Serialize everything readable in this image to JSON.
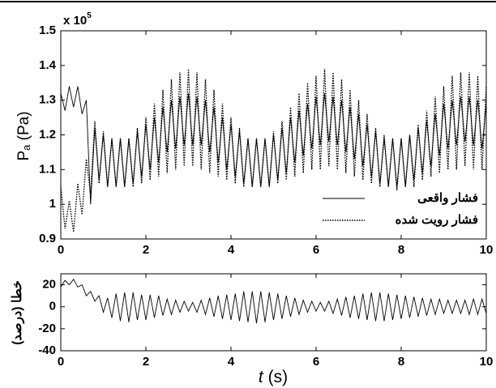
{
  "chart_data": [
    {
      "type": "line",
      "ylabel_symbol": "P",
      "ylabel_sub": "a",
      "ylabel_unit": " (Pa)",
      "multiplier": "x 10",
      "multiplier_exp": "5",
      "x": [
        0,
        0.1,
        0.2,
        0.3,
        0.4,
        0.5,
        0.6,
        0.7,
        0.8,
        0.9,
        1,
        1.1,
        1.2,
        1.3,
        1.4,
        1.5,
        1.6,
        1.7,
        1.8,
        1.9,
        2,
        2.1,
        2.2,
        2.3,
        2.4,
        2.5,
        2.6,
        2.7,
        2.8,
        2.9,
        3,
        3.1,
        3.2,
        3.3,
        3.4,
        3.5,
        3.6,
        3.7,
        3.8,
        3.9,
        4,
        4.1,
        4.2,
        4.3,
        4.4,
        4.5,
        4.6,
        4.7,
        4.8,
        4.9,
        5,
        5.1,
        5.2,
        5.3,
        5.4,
        5.5,
        5.6,
        5.7,
        5.8,
        5.9,
        6,
        6.1,
        6.2,
        6.3,
        6.4,
        6.5,
        6.6,
        6.7,
        6.8,
        6.9,
        7,
        7.1,
        7.2,
        7.3,
        7.4,
        7.5,
        7.6,
        7.7,
        7.8,
        7.9,
        8,
        8.1,
        8.2,
        8.3,
        8.4,
        8.5,
        8.6,
        8.7,
        8.8,
        8.9,
        9,
        9.1,
        9.2,
        9.3,
        9.4,
        9.5,
        9.6,
        9.7,
        9.8,
        9.9,
        10
      ],
      "series": [
        {
          "name": "فشار واقعی",
          "color": "#000000",
          "dash": "solid",
          "values": [
            1.32,
            1.27,
            1.34,
            1.28,
            1.34,
            1.26,
            1.3,
            1.0,
            1.22,
            1.07,
            1.2,
            1.05,
            1.19,
            1.05,
            1.19,
            1.05,
            1.19,
            1.06,
            1.21,
            1.08,
            1.23,
            1.1,
            1.25,
            1.12,
            1.28,
            1.15,
            1.3,
            1.16,
            1.31,
            1.17,
            1.32,
            1.17,
            1.31,
            1.17,
            1.3,
            1.15,
            1.28,
            1.12,
            1.25,
            1.1,
            1.23,
            1.08,
            1.21,
            1.06,
            1.19,
            1.05,
            1.19,
            1.05,
            1.19,
            1.05,
            1.2,
            1.07,
            1.22,
            1.09,
            1.25,
            1.12,
            1.27,
            1.14,
            1.29,
            1.16,
            1.31,
            1.17,
            1.32,
            1.18,
            1.31,
            1.17,
            1.3,
            1.15,
            1.28,
            1.13,
            1.26,
            1.11,
            1.23,
            1.08,
            1.21,
            1.06,
            1.19,
            1.05,
            1.19,
            1.05,
            1.19,
            1.05,
            1.2,
            1.07,
            1.22,
            1.09,
            1.24,
            1.11,
            1.26,
            1.14,
            1.29,
            1.16,
            1.3,
            1.17,
            1.31,
            1.18,
            1.31,
            1.17,
            1.3,
            1.16,
            1.29
          ]
        },
        {
          "name": "فشار رویت شده",
          "color": "#000000",
          "dash": "dotted",
          "values": [
            1.05,
            0.93,
            1.01,
            0.92,
            1.06,
            0.97,
            1.13,
            1.03,
            1.24,
            1.06,
            1.21,
            1.05,
            1.19,
            1.05,
            1.19,
            1.05,
            1.19,
            1.05,
            1.22,
            1.06,
            1.25,
            1.07,
            1.29,
            1.08,
            1.33,
            1.09,
            1.36,
            1.1,
            1.38,
            1.11,
            1.39,
            1.11,
            1.38,
            1.1,
            1.36,
            1.09,
            1.33,
            1.08,
            1.29,
            1.07,
            1.25,
            1.06,
            1.22,
            1.05,
            1.19,
            1.05,
            1.19,
            1.05,
            1.19,
            1.05,
            1.21,
            1.06,
            1.24,
            1.07,
            1.28,
            1.08,
            1.32,
            1.09,
            1.35,
            1.1,
            1.37,
            1.1,
            1.39,
            1.11,
            1.38,
            1.1,
            1.36,
            1.09,
            1.33,
            1.08,
            1.3,
            1.07,
            1.26,
            1.06,
            1.22,
            1.05,
            1.2,
            1.05,
            1.19,
            1.04,
            1.19,
            1.05,
            1.2,
            1.05,
            1.23,
            1.07,
            1.27,
            1.08,
            1.31,
            1.09,
            1.34,
            1.1,
            1.37,
            1.1,
            1.38,
            1.11,
            1.38,
            1.1,
            1.37,
            1.1,
            1.34
          ]
        }
      ],
      "xlim": [
        0,
        10
      ],
      "xticks": [
        0,
        2,
        4,
        6,
        8,
        10
      ],
      "ylim": [
        0.9,
        1.5
      ],
      "yticks": [
        0.9,
        1,
        1.1,
        1.2,
        1.3,
        1.4,
        1.5
      ]
    },
    {
      "type": "line",
      "ylabel": "خطا (درصد)",
      "xlabel_var": "t",
      "xlabel_unit": " (s)",
      "x": [
        0,
        0.1,
        0.2,
        0.3,
        0.4,
        0.5,
        0.6,
        0.7,
        0.8,
        0.9,
        1,
        1.1,
        1.2,
        1.3,
        1.4,
        1.5,
        1.6,
        1.7,
        1.8,
        1.9,
        2,
        2.1,
        2.2,
        2.3,
        2.4,
        2.5,
        2.6,
        2.7,
        2.8,
        2.9,
        3,
        3.1,
        3.2,
        3.3,
        3.4,
        3.5,
        3.6,
        3.7,
        3.8,
        3.9,
        4,
        4.1,
        4.2,
        4.3,
        4.4,
        4.5,
        4.6,
        4.7,
        4.8,
        4.9,
        5,
        5.1,
        5.2,
        5.3,
        5.4,
        5.5,
        5.6,
        5.7,
        5.8,
        5.9,
        6,
        6.1,
        6.2,
        6.3,
        6.4,
        6.5,
        6.6,
        6.7,
        6.8,
        6.9,
        7,
        7.1,
        7.2,
        7.3,
        7.4,
        7.5,
        7.6,
        7.7,
        7.8,
        7.9,
        8,
        8.1,
        8.2,
        8.3,
        8.4,
        8.5,
        8.6,
        8.7,
        8.8,
        8.9,
        9,
        9.1,
        9.2,
        9.3,
        9.4,
        9.5,
        9.6,
        9.7,
        9.8,
        9.9,
        10
      ],
      "series": [
        {
          "color": "#000000",
          "dash": "solid",
          "values": [
            18,
            24,
            20,
            25,
            18,
            20,
            10,
            14,
            5,
            10,
            -5,
            8,
            -10,
            12,
            -13,
            13,
            -14,
            13,
            -12,
            11,
            -12,
            11,
            -10,
            10,
            -8,
            7,
            -7,
            6,
            -5,
            5,
            -4,
            4,
            -5,
            6,
            -7,
            8,
            -9,
            10,
            -11,
            11,
            -12,
            12,
            -13,
            14,
            -14,
            14,
            -15,
            14,
            -14,
            13,
            -12,
            12,
            -11,
            10,
            -9,
            8,
            -7,
            6,
            -5,
            5,
            -4,
            4,
            -4,
            5,
            -6,
            7,
            -8,
            9,
            -10,
            10,
            -11,
            12,
            -12,
            13,
            -13,
            13,
            -13,
            12,
            -12,
            11,
            -11,
            10,
            -10,
            9,
            -9,
            8,
            -8,
            7,
            -7,
            7,
            -6,
            6,
            -6,
            6,
            -6,
            6,
            -7,
            7,
            -7,
            7,
            -6
          ]
        }
      ],
      "xlim": [
        0,
        10
      ],
      "xticks": [
        0,
        2,
        4,
        6,
        8,
        10
      ],
      "ylim": [
        -40,
        30
      ],
      "yticks": [
        -40,
        -20,
        0,
        20
      ]
    }
  ]
}
